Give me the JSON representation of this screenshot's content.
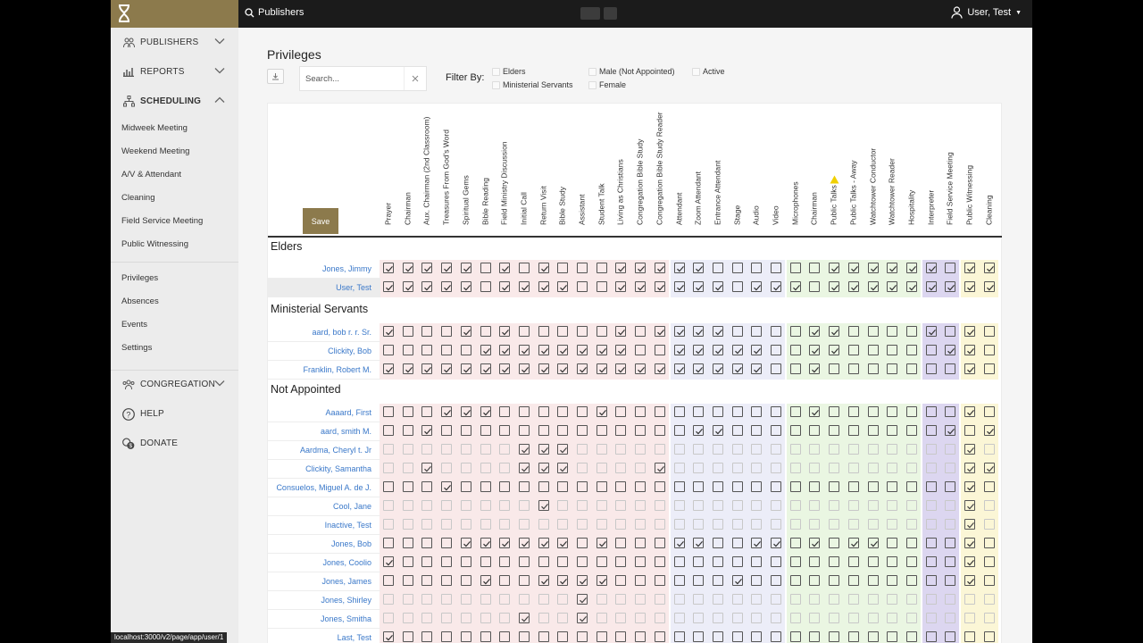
{
  "topbar": {
    "search_label": "Publishers",
    "user_label": "User, Test"
  },
  "sidebar": {
    "sections": [
      {
        "name": "publishers",
        "label": "PUBLISHERS",
        "icon": "people-icon",
        "chevron": "chevron-down-icon"
      },
      {
        "name": "reports",
        "label": "REPORTS",
        "icon": "bar-chart-icon",
        "chevron": "chevron-down-icon"
      },
      {
        "name": "scheduling",
        "label": "SCHEDULING",
        "icon": "org-chart-icon",
        "chevron": "chevron-up-icon"
      }
    ],
    "scheduling_items": [
      "Midweek Meeting",
      "Weekend Meeting",
      "A/V & Attendant",
      "Cleaning",
      "Field Service Meeting",
      "Public Witnessing"
    ],
    "admin_items": [
      "Privileges",
      "Absences",
      "Events",
      "Settings"
    ],
    "bottom": [
      {
        "name": "congregation",
        "label": "CONGREGATION",
        "icon": "group-icon"
      },
      {
        "name": "help",
        "label": "HELP",
        "icon": "help-circle-icon"
      },
      {
        "name": "donate",
        "label": "DONATE",
        "icon": "coins-icon"
      }
    ]
  },
  "page": {
    "title": "Privileges",
    "search_placeholder": "Search...",
    "filter_label": "Filter By:",
    "filters": [
      "Elders",
      "Ministerial Servants",
      "Male (Not Appointed)",
      "Female",
      "Active"
    ],
    "save_label": "Save"
  },
  "colors": {
    "brand": "#8c7a4c",
    "link": "#3a78c9",
    "pink": "#f9e9e9",
    "blue": "#ecedf8",
    "green": "#eaf6e2",
    "purple": "#dcd6f0",
    "yellow": "#fbf6d6",
    "warning": "#f0d000"
  },
  "columns": [
    "Prayer",
    "Chairman",
    "Aux. Chairman (2nd Classroom)",
    "Treasures From God's Word",
    "Spiritual Gems",
    "Bible Reading",
    "Field Ministry Discussion",
    "Initial Call",
    "Return Visit",
    "Bible Study",
    "Assistant",
    "Student Talk",
    "Living as Christians",
    "Congregation Bible Study",
    "Congregation Bible Study Reader",
    "Attendant",
    "Zoom Attendant",
    "Entrance Attendant",
    "Stage",
    "Audio",
    "Video",
    "Microphones",
    "Chairman",
    "Public Talks",
    "Public Talks - Away",
    "Watchtower Conductor",
    "Watchtower Reader",
    "Hospitality",
    "Interpreter",
    "Field Service Meeting",
    "Public Witnessing",
    "Cleaning"
  ],
  "groups": [
    {
      "title": "Elders",
      "rows": [
        {
          "name": "Jones, Jimmy",
          "checks": "11111010100011111000000111111011",
          "dim": false
        },
        {
          "name": "User, Test",
          "checks": "11111011110011111101110111111111",
          "dim": false
        }
      ]
    },
    {
      "title": "Ministerial Servants",
      "rows": [
        {
          "name": "aard, bob r. r. Sr.",
          "checks": "10001010000010111100001100001010",
          "dim": false
        },
        {
          "name": "Clickity, Bob",
          "checks": "00000111111110011111001100000110",
          "dim": false
        },
        {
          "name": "Franklin, Robert M.",
          "checks": "11111111111111111111001000000010",
          "dim": false
        }
      ]
    },
    {
      "title": "Not Appointed",
      "rows": [
        {
          "name": "Aaaard, First",
          "checks": "00011100000100000000001000000010",
          "dim": false
        },
        {
          "name": "aard, smith M.",
          "checks": "00100000000000001100000000000101",
          "dim": false
        },
        {
          "name": "Aardma, Cheryl t. Jr",
          "checks": "00000001110000000000000000000010",
          "dim": true
        },
        {
          "name": "Clickity, Samantha",
          "checks": "00100001110000100000000000000011",
          "dim": true
        },
        {
          "name": "Consuelos, Miguel A. de J.",
          "checks": "00010000000000000000000000000010",
          "dim": false
        },
        {
          "name": "Cool, Jane",
          "checks": "00000000100000000000000000000010",
          "dim": true
        },
        {
          "name": "Inactive, Test",
          "checks": "00000000000000000000000000000010",
          "dim": true
        },
        {
          "name": "Jones, Bob",
          "checks": "00001111110100011001101011000010",
          "dim": false
        },
        {
          "name": "Jones, Coolio",
          "checks": "10000000000000000000000000000010",
          "dim": false
        },
        {
          "name": "Jones, James",
          "checks": "00000100111100000010000000000010",
          "dim": false
        },
        {
          "name": "Jones, Shirley",
          "checks": "00000000001000000000000000000000",
          "dim": true
        },
        {
          "name": "Jones, Smitha",
          "checks": "00000001001000000000000000000000",
          "dim": true
        },
        {
          "name": "Last, Test",
          "checks": "10000000000000000000000000000000",
          "dim": false
        }
      ]
    }
  ],
  "statusbar": "localhost:3000/v2/page/app/user/1"
}
